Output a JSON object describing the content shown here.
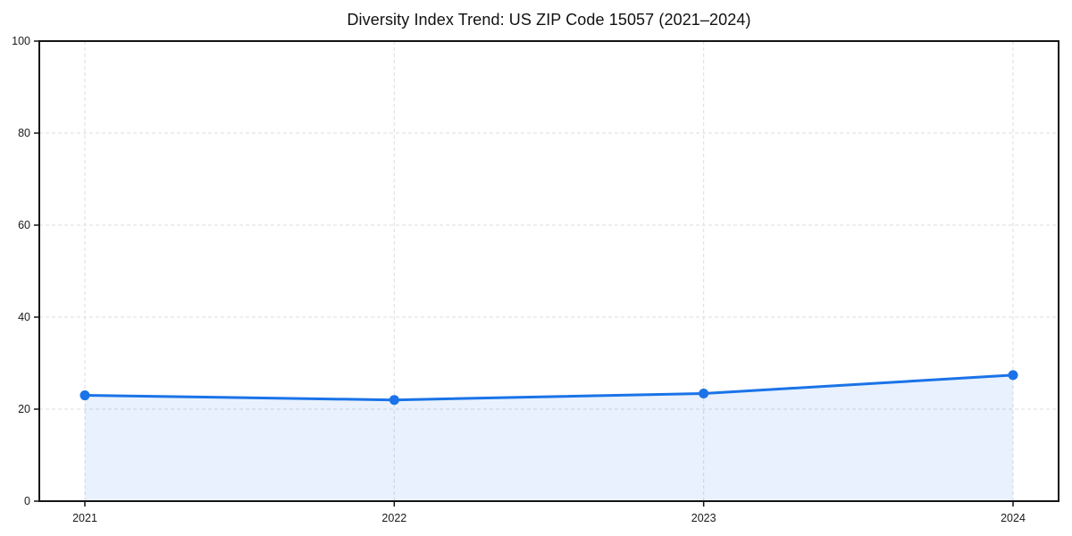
{
  "chart_data": {
    "type": "line",
    "title": "Diversity Index Trend: US ZIP Code 15057 (2021–2024)",
    "x": [
      "2021",
      "2022",
      "2023",
      "2024"
    ],
    "series": [
      {
        "name": "Diversity Index",
        "values": [
          23.0,
          22.0,
          23.4,
          27.4
        ]
      }
    ],
    "xlabel": "",
    "ylabel": "",
    "ylim": [
      0,
      100
    ],
    "yticks": [
      0,
      20,
      40,
      60,
      80,
      100
    ],
    "grid": true,
    "grid_style": "dashed",
    "legend": "none",
    "area_fill": true,
    "marker": "circle",
    "colors": {
      "line": "#1a73e8",
      "fill": "#1a73e8",
      "fill_opacity": 0.1,
      "grid": "#e3e3e3",
      "spine": "#141414",
      "text": "#1a1a1a",
      "background": "#ffffff"
    }
  }
}
